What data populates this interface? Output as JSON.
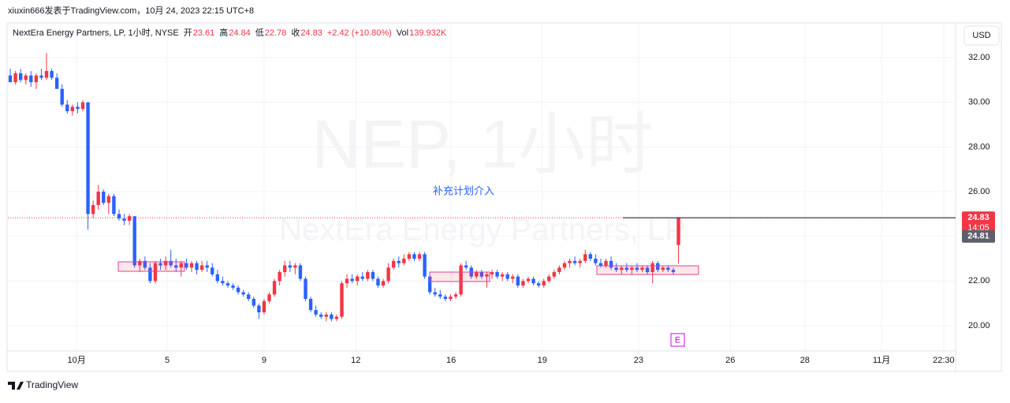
{
  "header": {
    "author_line": "xiuxin666发表于TradingView.com，10月 24, 2023 22:15 UTC+8",
    "symbol": "NextEra Energy Partners, LP, 1小时, NYSE",
    "open_label": "开",
    "open": "23.61",
    "high_label": "高",
    "high": "24.84",
    "low_label": "低",
    "low": "22.78",
    "close_label": "收",
    "close": "24.83",
    "change": "+2.42 (+10.80%)",
    "volume_label": "Vol",
    "volume": "139.932K",
    "currency": "USD"
  },
  "footer": {
    "brand": "TradingView"
  },
  "chart_data": {
    "type": "candlestick",
    "watermark": "NEP, 1小时",
    "watermark_subtitle": "NextEra Energy Partners, LP",
    "annotation": "补充计划介入",
    "event_marker": "E",
    "up_color": "#f23645",
    "down_color": "#2962ff",
    "xlim": [
      -0.46,
      182.5
    ],
    "ylim": [
      18.87,
      33.52
    ],
    "yticks": [
      {
        "value": 20,
        "label": "20.00"
      },
      {
        "value": 22,
        "label": "22.00"
      },
      {
        "value": 24,
        "label": "24.00"
      },
      {
        "value": 26,
        "label": "26.00"
      },
      {
        "value": 28,
        "label": "28.00"
      },
      {
        "value": 30,
        "label": "30.00"
      },
      {
        "value": 32,
        "label": "32.00"
      }
    ],
    "xticks": [
      {
        "value": 12.8,
        "label": "10月"
      },
      {
        "value": 30.3,
        "label": "5"
      },
      {
        "value": 49,
        "label": "9"
      },
      {
        "value": 66.7,
        "label": "12"
      },
      {
        "value": 85.1,
        "label": "16"
      },
      {
        "value": 102.7,
        "label": "19"
      },
      {
        "value": 121.3,
        "label": "23"
      },
      {
        "value": 139,
        "label": "26"
      },
      {
        "value": 153.4,
        "label": "28"
      },
      {
        "value": 168.2,
        "label": "11月"
      },
      {
        "value": 180.2,
        "label": "22:30"
      }
    ],
    "last_price": {
      "value": 24.83,
      "label": "24.83"
    },
    "countdown": "14:05",
    "bid_price": {
      "value": 24.81,
      "label": "24.81"
    },
    "candles": [
      [
        31.2,
        31.5,
        30.9,
        30.9
      ],
      [
        30.9,
        31.4,
        30.8,
        31.3
      ],
      [
        31.3,
        31.5,
        30.9,
        31.0
      ],
      [
        31.0,
        31.3,
        30.8,
        31.2
      ],
      [
        31.2,
        31.4,
        30.7,
        30.9
      ],
      [
        30.9,
        31.3,
        30.6,
        31.2
      ],
      [
        31.2,
        31.5,
        31.0,
        31.1
      ],
      [
        31.1,
        32.2,
        31.0,
        31.4
      ],
      [
        31.4,
        31.5,
        31.0,
        31.1
      ],
      [
        31.1,
        31.3,
        30.6,
        30.6
      ],
      [
        30.6,
        30.8,
        29.8,
        29.9
      ],
      [
        29.9,
        30.1,
        29.5,
        29.6
      ],
      [
        29.6,
        29.9,
        29.4,
        29.8
      ],
      [
        29.8,
        30.0,
        29.5,
        29.7
      ],
      [
        29.7,
        30.1,
        29.6,
        30.0
      ],
      [
        30.0,
        30.0,
        24.3,
        25.0
      ],
      [
        25.0,
        25.6,
        24.8,
        25.4
      ],
      [
        25.4,
        26.3,
        25.2,
        26.0
      ],
      [
        26.0,
        26.1,
        25.4,
        25.5
      ],
      [
        25.5,
        25.9,
        25.0,
        25.8
      ],
      [
        25.8,
        25.9,
        24.9,
        25.0
      ],
      [
        25.0,
        25.2,
        24.7,
        24.8
      ],
      [
        24.8,
        25.0,
        24.5,
        24.7
      ],
      [
        24.7,
        25.0,
        24.5,
        24.9
      ],
      [
        24.9,
        24.9,
        22.6,
        22.7
      ],
      [
        22.7,
        23.0,
        22.4,
        22.9
      ],
      [
        22.9,
        23.1,
        22.5,
        22.6
      ],
      [
        22.6,
        22.8,
        21.9,
        22.0
      ],
      [
        22.0,
        22.9,
        21.9,
        22.8
      ],
      [
        22.8,
        23.0,
        22.5,
        22.7
      ],
      [
        22.7,
        23.1,
        22.5,
        22.9
      ],
      [
        22.9,
        23.4,
        22.6,
        22.7
      ],
      [
        22.7,
        23.0,
        22.4,
        22.6
      ],
      [
        22.6,
        22.9,
        22.2,
        22.8
      ],
      [
        22.8,
        23.0,
        22.5,
        22.6
      ],
      [
        22.6,
        22.9,
        22.4,
        22.8
      ],
      [
        22.8,
        22.9,
        22.3,
        22.5
      ],
      [
        22.5,
        22.9,
        22.4,
        22.7
      ],
      [
        22.7,
        22.9,
        22.4,
        22.6
      ],
      [
        22.6,
        22.8,
        22.2,
        22.3
      ],
      [
        22.3,
        22.5,
        21.9,
        22.0
      ],
      [
        22.0,
        22.2,
        21.8,
        21.9
      ],
      [
        21.9,
        22.0,
        21.7,
        21.8
      ],
      [
        21.8,
        21.9,
        21.6,
        21.7
      ],
      [
        21.7,
        21.8,
        21.4,
        21.5
      ],
      [
        21.5,
        21.6,
        21.3,
        21.4
      ],
      [
        21.4,
        21.5,
        21.1,
        21.2
      ],
      [
        21.2,
        21.3,
        20.8,
        20.9
      ],
      [
        20.9,
        21.0,
        20.3,
        20.6
      ],
      [
        20.6,
        21.2,
        20.5,
        21.1
      ],
      [
        21.1,
        21.5,
        21.0,
        21.4
      ],
      [
        21.4,
        22.1,
        21.3,
        22.0
      ],
      [
        22.0,
        22.5,
        21.8,
        22.4
      ],
      [
        22.4,
        22.9,
        22.2,
        22.7
      ],
      [
        22.7,
        22.9,
        22.4,
        22.6
      ],
      [
        22.6,
        22.8,
        22.3,
        22.7
      ],
      [
        22.7,
        22.8,
        22.0,
        22.1
      ],
      [
        22.1,
        22.2,
        21.1,
        21.2
      ],
      [
        21.2,
        21.3,
        20.6,
        20.7
      ],
      [
        20.7,
        20.9,
        20.4,
        20.5
      ],
      [
        20.5,
        20.6,
        20.3,
        20.4
      ],
      [
        20.4,
        20.6,
        20.2,
        20.5
      ],
      [
        20.5,
        20.6,
        20.2,
        20.3
      ],
      [
        20.3,
        20.5,
        20.2,
        20.4
      ],
      [
        20.4,
        22.0,
        20.3,
        21.9
      ],
      [
        21.9,
        22.3,
        21.7,
        22.1
      ],
      [
        22.1,
        22.3,
        21.9,
        22.0
      ],
      [
        22.0,
        22.3,
        21.8,
        22.2
      ],
      [
        22.2,
        22.4,
        22.0,
        22.1
      ],
      [
        22.1,
        22.5,
        22.0,
        22.4
      ],
      [
        22.4,
        22.5,
        22.0,
        22.1
      ],
      [
        22.1,
        22.2,
        21.7,
        21.8
      ],
      [
        21.8,
        22.1,
        21.7,
        22.0
      ],
      [
        22.0,
        22.8,
        21.9,
        22.6
      ],
      [
        22.6,
        23.0,
        22.5,
        22.9
      ],
      [
        22.9,
        23.1,
        22.6,
        22.8
      ],
      [
        22.8,
        23.2,
        22.7,
        23.0
      ],
      [
        23.0,
        23.3,
        22.9,
        23.2
      ],
      [
        23.2,
        23.3,
        22.9,
        23.0
      ],
      [
        23.0,
        23.3,
        22.9,
        23.2
      ],
      [
        23.2,
        23.3,
        22.1,
        22.2
      ],
      [
        22.2,
        22.3,
        21.4,
        21.5
      ],
      [
        21.5,
        21.7,
        21.3,
        21.4
      ],
      [
        21.4,
        21.6,
        21.2,
        21.3
      ],
      [
        21.3,
        21.4,
        21.1,
        21.2
      ],
      [
        21.2,
        21.4,
        21.1,
        21.3
      ],
      [
        21.3,
        21.5,
        21.2,
        21.4
      ],
      [
        21.4,
        22.8,
        21.3,
        22.7
      ],
      [
        22.7,
        22.9,
        22.5,
        22.6
      ],
      [
        22.6,
        22.7,
        22.1,
        22.2
      ],
      [
        22.2,
        22.5,
        22.1,
        22.4
      ],
      [
        22.4,
        22.5,
        22.1,
        22.2
      ],
      [
        22.2,
        22.4,
        21.7,
        22.3
      ],
      [
        22.3,
        22.5,
        22.1,
        22.4
      ],
      [
        22.4,
        22.5,
        22.1,
        22.2
      ],
      [
        22.2,
        22.4,
        22.0,
        22.3
      ],
      [
        22.3,
        22.4,
        22.0,
        22.1
      ],
      [
        22.1,
        22.3,
        21.9,
        22.2
      ],
      [
        22.2,
        22.3,
        21.7,
        21.8
      ],
      [
        21.8,
        22.1,
        21.7,
        22.0
      ],
      [
        22.0,
        22.2,
        21.9,
        22.1
      ],
      [
        22.1,
        22.2,
        21.8,
        21.9
      ],
      [
        21.9,
        22.0,
        21.7,
        21.8
      ],
      [
        21.8,
        22.1,
        21.7,
        22.0
      ],
      [
        22.0,
        22.3,
        21.9,
        22.2
      ],
      [
        22.2,
        22.5,
        22.1,
        22.4
      ],
      [
        22.4,
        22.7,
        22.3,
        22.6
      ],
      [
        22.6,
        22.9,
        22.5,
        22.8
      ],
      [
        22.8,
        23.0,
        22.6,
        22.9
      ],
      [
        22.9,
        23.1,
        22.7,
        22.8
      ],
      [
        22.8,
        23.0,
        22.6,
        22.9
      ],
      [
        22.9,
        23.4,
        22.8,
        23.2
      ],
      [
        23.2,
        23.3,
        22.9,
        23.0
      ],
      [
        23.0,
        23.2,
        22.7,
        22.8
      ],
      [
        22.8,
        23.0,
        22.6,
        22.7
      ],
      [
        22.7,
        23.0,
        22.6,
        22.9
      ],
      [
        22.9,
        23.1,
        22.5,
        22.6
      ],
      [
        22.6,
        22.8,
        22.4,
        22.5
      ],
      [
        22.5,
        22.7,
        22.3,
        22.6
      ],
      [
        22.6,
        22.8,
        22.4,
        22.5
      ],
      [
        22.5,
        22.7,
        22.3,
        22.6
      ],
      [
        22.6,
        22.8,
        22.4,
        22.5
      ],
      [
        22.5,
        22.7,
        22.4,
        22.6
      ],
      [
        22.6,
        22.7,
        22.3,
        22.4
      ],
      [
        22.4,
        22.9,
        21.9,
        22.8
      ],
      [
        22.8,
        22.9,
        22.4,
        22.5
      ],
      [
        22.5,
        22.7,
        22.4,
        22.6
      ],
      [
        22.6,
        22.7,
        22.4,
        22.5
      ],
      [
        22.5,
        22.6,
        22.3,
        22.4
      ],
      [
        23.61,
        24.84,
        22.78,
        24.83
      ]
    ]
  }
}
